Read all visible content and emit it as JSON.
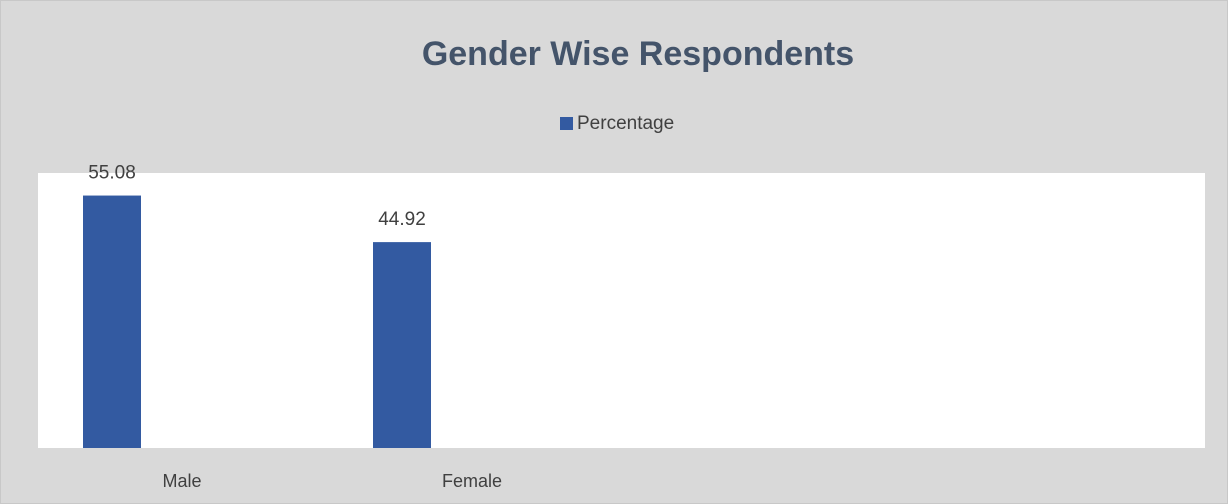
{
  "chart_data": {
    "type": "bar",
    "title": "Gender Wise Respondents",
    "categories": [
      "Male",
      "Female"
    ],
    "series": [
      {
        "name": "Percentage",
        "color": "#335aa1",
        "values": [
          55.08,
          44.92
        ]
      }
    ],
    "ylim": [
      0,
      60
    ]
  }
}
